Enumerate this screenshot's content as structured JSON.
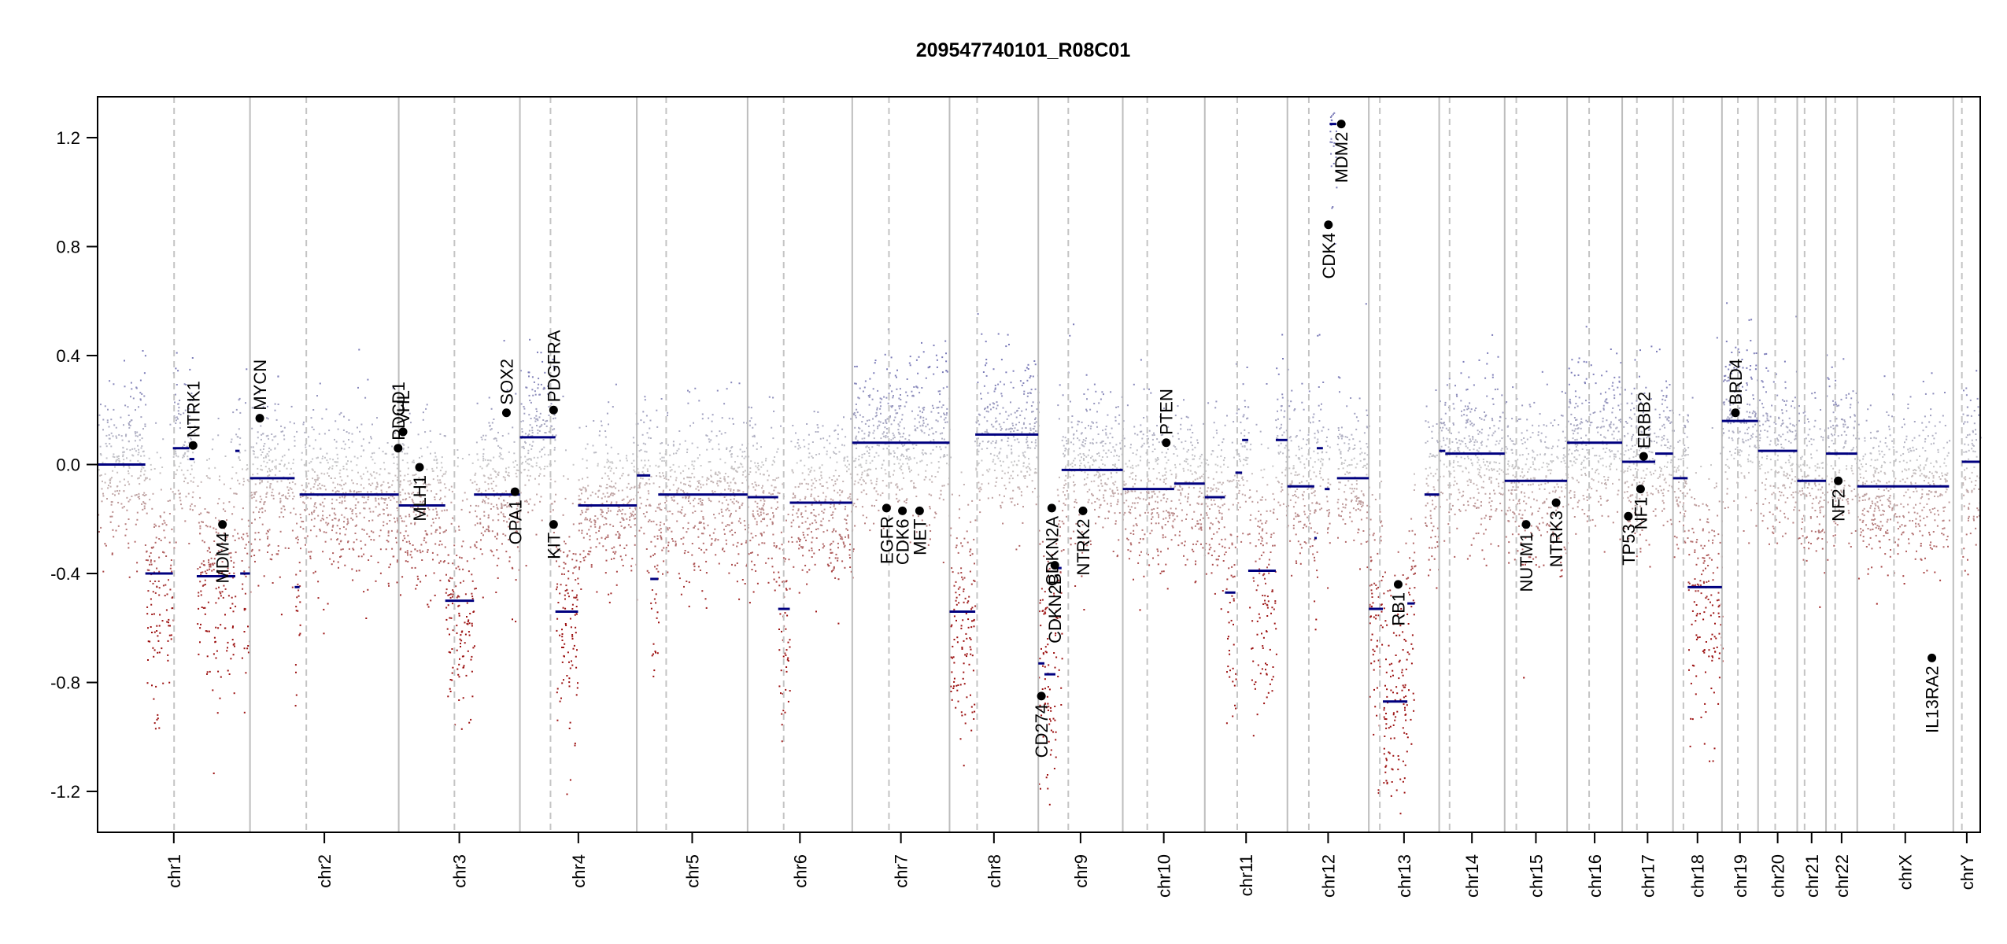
{
  "chart_data": {
    "type": "scatter",
    "title": "209547740101_R08C01",
    "xlabel": "",
    "ylabel": "",
    "ylim": [
      -1.35,
      1.35
    ],
    "yticks": [
      -1.2,
      -0.8,
      -0.4,
      0.0,
      0.4,
      0.8,
      1.2
    ],
    "ytick_labels": [
      "-1.2",
      "-0.8",
      "-0.4",
      "0.0",
      "0.4",
      "0.8",
      "1.2"
    ],
    "xlim": [
      0,
      3076
    ],
    "colors": {
      "gain": "#7b7bb8",
      "neutral": "#c8c8c8",
      "loss": "#9c1010",
      "segment": "#00007f",
      "gene": "#000000"
    },
    "chromosomes": [
      {
        "label": "chr1",
        "start": 0,
        "end": 249,
        "centromere": 125
      },
      {
        "label": "chr2",
        "start": 249,
        "end": 492,
        "centromere": 341
      },
      {
        "label": "chr3",
        "start": 492,
        "end": 690,
        "centromere": 583
      },
      {
        "label": "chr4",
        "start": 690,
        "end": 881,
        "centromere": 740
      },
      {
        "label": "chr5",
        "start": 881,
        "end": 1062,
        "centromere": 929
      },
      {
        "label": "chr6",
        "start": 1062,
        "end": 1233,
        "centromere": 1121
      },
      {
        "label": "chr7",
        "start": 1233,
        "end": 1392,
        "centromere": 1293
      },
      {
        "label": "chr8",
        "start": 1392,
        "end": 1537,
        "centromere": 1437
      },
      {
        "label": "chr9",
        "start": 1537,
        "end": 1675,
        "centromere": 1586
      },
      {
        "label": "chr10",
        "start": 1675,
        "end": 1809,
        "centromere": 1715
      },
      {
        "label": "chr11",
        "start": 1809,
        "end": 1944,
        "centromere": 1862
      },
      {
        "label": "chr12",
        "start": 1944,
        "end": 2077,
        "centromere": 1979
      },
      {
        "label": "chr13",
        "start": 2077,
        "end": 2192,
        "centromere": 2095
      },
      {
        "label": "chr14",
        "start": 2192,
        "end": 2299,
        "centromere": 2209
      },
      {
        "label": "chr15",
        "start": 2299,
        "end": 2401,
        "centromere": 2318
      },
      {
        "label": "chr16",
        "start": 2401,
        "end": 2491,
        "centromere": 2437
      },
      {
        "label": "chr17",
        "start": 2491,
        "end": 2574,
        "centromere": 2515
      },
      {
        "label": "chr18",
        "start": 2574,
        "end": 2654,
        "centromere": 2591
      },
      {
        "label": "chr19",
        "start": 2654,
        "end": 2713,
        "centromere": 2680
      },
      {
        "label": "chr20",
        "start": 2713,
        "end": 2777,
        "centromere": 2741
      },
      {
        "label": "chr21",
        "start": 2777,
        "end": 2824,
        "centromere": 2789
      },
      {
        "label": "chr22",
        "start": 2824,
        "end": 2875,
        "centromere": 2839
      },
      {
        "label": "chrX",
        "start": 2875,
        "end": 3032,
        "centromere": 2935
      },
      {
        "label": "chrY",
        "start": 3032,
        "end": 3076,
        "centromere": 3046
      }
    ],
    "segments": [
      {
        "x0": 0,
        "x1": 78,
        "y": 0.0
      },
      {
        "x0": 78,
        "x1": 123,
        "y": -0.4
      },
      {
        "x0": 123,
        "x1": 150,
        "y": 0.06
      },
      {
        "x0": 150,
        "x1": 158,
        "y": 0.02
      },
      {
        "x0": 162,
        "x1": 225,
        "y": -0.41
      },
      {
        "x0": 225,
        "x1": 232,
        "y": 0.05
      },
      {
        "x0": 233,
        "x1": 249,
        "y": -0.4
      },
      {
        "x0": 249,
        "x1": 322,
        "y": -0.05
      },
      {
        "x0": 322,
        "x1": 330,
        "y": -0.45
      },
      {
        "x0": 330,
        "x1": 492,
        "y": -0.11
      },
      {
        "x0": 492,
        "x1": 568,
        "y": -0.15
      },
      {
        "x0": 568,
        "x1": 615,
        "y": -0.5
      },
      {
        "x0": 615,
        "x1": 690,
        "y": -0.11
      },
      {
        "x0": 690,
        "x1": 748,
        "y": 0.1
      },
      {
        "x0": 748,
        "x1": 785,
        "y": -0.54
      },
      {
        "x0": 785,
        "x1": 881,
        "y": -0.15
      },
      {
        "x0": 881,
        "x1": 903,
        "y": -0.04
      },
      {
        "x0": 903,
        "x1": 916,
        "y": -0.42
      },
      {
        "x0": 916,
        "x1": 1062,
        "y": -0.11
      },
      {
        "x0": 1062,
        "x1": 1112,
        "y": -0.12
      },
      {
        "x0": 1112,
        "x1": 1131,
        "y": -0.53
      },
      {
        "x0": 1131,
        "x1": 1233,
        "y": -0.14
      },
      {
        "x0": 1233,
        "x1": 1392,
        "y": 0.08
      },
      {
        "x0": 1392,
        "x1": 1434,
        "y": -0.54
      },
      {
        "x0": 1434,
        "x1": 1537,
        "y": 0.11
      },
      {
        "x0": 1537,
        "x1": 1547,
        "y": -0.73
      },
      {
        "x0": 1547,
        "x1": 1565,
        "y": -0.77
      },
      {
        "x0": 1565,
        "x1": 1575,
        "y": -0.38
      },
      {
        "x0": 1575,
        "x1": 1675,
        "y": -0.02
      },
      {
        "x0": 1675,
        "x1": 1759,
        "y": -0.09
      },
      {
        "x0": 1759,
        "x1": 1809,
        "y": -0.07
      },
      {
        "x0": 1809,
        "x1": 1842,
        "y": -0.12
      },
      {
        "x0": 1842,
        "x1": 1859,
        "y": -0.47
      },
      {
        "x0": 1859,
        "x1": 1870,
        "y": -0.03
      },
      {
        "x0": 1870,
        "x1": 1880,
        "y": 0.09
      },
      {
        "x0": 1880,
        "x1": 1925,
        "y": -0.39
      },
      {
        "x0": 1925,
        "x1": 1944,
        "y": 0.09
      },
      {
        "x0": 1944,
        "x1": 1988,
        "y": -0.08
      },
      {
        "x0": 1988,
        "x1": 1992,
        "y": -0.27
      },
      {
        "x0": 1992,
        "x1": 2002,
        "y": 0.06
      },
      {
        "x0": 2005,
        "x1": 2013,
        "y": -0.09
      },
      {
        "x0": 2013,
        "x1": 2024,
        "y": 1.25
      },
      {
        "x0": 2025,
        "x1": 2077,
        "y": -0.05
      },
      {
        "x0": 2077,
        "x1": 2100,
        "y": -0.53
      },
      {
        "x0": 2100,
        "x1": 2140,
        "y": -0.87
      },
      {
        "x0": 2140,
        "x1": 2152,
        "y": -0.51
      },
      {
        "x0": 2168,
        "x1": 2192,
        "y": -0.11
      },
      {
        "x0": 2192,
        "x1": 2202,
        "y": 0.05
      },
      {
        "x0": 2202,
        "x1": 2299,
        "y": 0.04
      },
      {
        "x0": 2299,
        "x1": 2401,
        "y": -0.06
      },
      {
        "x0": 2401,
        "x1": 2491,
        "y": 0.08
      },
      {
        "x0": 2491,
        "x1": 2545,
        "y": 0.01
      },
      {
        "x0": 2545,
        "x1": 2574,
        "y": 0.04
      },
      {
        "x0": 2574,
        "x1": 2598,
        "y": -0.05
      },
      {
        "x0": 2598,
        "x1": 2654,
        "y": -0.45
      },
      {
        "x0": 2654,
        "x1": 2713,
        "y": 0.16
      },
      {
        "x0": 2713,
        "x1": 2777,
        "y": 0.05
      },
      {
        "x0": 2777,
        "x1": 2824,
        "y": -0.06
      },
      {
        "x0": 2824,
        "x1": 2860,
        "y": 0.04
      },
      {
        "x0": 2860,
        "x1": 2875,
        "y": 0.04
      },
      {
        "x0": 2875,
        "x1": 3025,
        "y": -0.08
      },
      {
        "x0": 3046,
        "x1": 3076,
        "y": 0.01
      }
    ],
    "genes": [
      {
        "name": "NTRK1",
        "x": 156,
        "y": 0.07,
        "label_pos": "above"
      },
      {
        "name": "MDM4",
        "x": 204,
        "y": -0.22,
        "label_pos": "below"
      },
      {
        "name": "MYCN",
        "x": 265,
        "y": 0.17,
        "label_pos": "above"
      },
      {
        "name": "PDCD1",
        "x": 491,
        "y": 0.06,
        "label_pos": "above"
      },
      {
        "name": "VHL",
        "x": 499,
        "y": 0.12,
        "label_pos": "above"
      },
      {
        "name": "MLH1",
        "x": 526,
        "y": -0.01,
        "label_pos": "below"
      },
      {
        "name": "SOX2",
        "x": 668,
        "y": 0.19,
        "label_pos": "above"
      },
      {
        "name": "OPA1",
        "x": 682,
        "y": -0.1,
        "label_pos": "below"
      },
      {
        "name": "PDGFRA",
        "x": 745,
        "y": 0.2,
        "label_pos": "above"
      },
      {
        "name": "KIT",
        "x": 745,
        "y": -0.22,
        "label_pos": "below"
      },
      {
        "name": "EGFR",
        "x": 1289,
        "y": -0.16,
        "label_pos": "below"
      },
      {
        "name": "CDK6",
        "x": 1315,
        "y": -0.17,
        "label_pos": "below"
      },
      {
        "name": "MET",
        "x": 1343,
        "y": -0.17,
        "label_pos": "below"
      },
      {
        "name": "CD274",
        "x": 1542,
        "y": -0.85,
        "label_pos": "below"
      },
      {
        "name": "CDKN2A",
        "x": 1559,
        "y": -0.16,
        "label_pos": "below"
      },
      {
        "name": "CDKN2B",
        "x": 1564,
        "y": -0.37,
        "label_pos": "below"
      },
      {
        "name": "NTRK2",
        "x": 1610,
        "y": -0.17,
        "label_pos": "below"
      },
      {
        "name": "PTEN",
        "x": 1746,
        "y": 0.08,
        "label_pos": "above"
      },
      {
        "name": "CDK4",
        "x": 2011,
        "y": 0.88,
        "label_pos": "below"
      },
      {
        "name": "MDM2",
        "x": 2032,
        "y": 1.25,
        "label_pos": "below"
      },
      {
        "name": "RB1",
        "x": 2125,
        "y": -0.44,
        "label_pos": "below"
      },
      {
        "name": "NUTM1",
        "x": 2334,
        "y": -0.22,
        "label_pos": "below"
      },
      {
        "name": "NTRK3",
        "x": 2383,
        "y": -0.14,
        "label_pos": "below"
      },
      {
        "name": "TP53",
        "x": 2501,
        "y": -0.19,
        "label_pos": "below"
      },
      {
        "name": "ERBB2",
        "x": 2526,
        "y": 0.03,
        "label_pos": "above"
      },
      {
        "name": "NF1",
        "x": 2521,
        "y": -0.09,
        "label_pos": "below"
      },
      {
        "name": "BRD4",
        "x": 2676,
        "y": 0.19,
        "label_pos": "above"
      },
      {
        "name": "NF2",
        "x": 2844,
        "y": -0.06,
        "label_pos": "below"
      },
      {
        "name": "IL13RA2",
        "x": 2997,
        "y": -0.71,
        "label_pos": "below"
      }
    ]
  }
}
